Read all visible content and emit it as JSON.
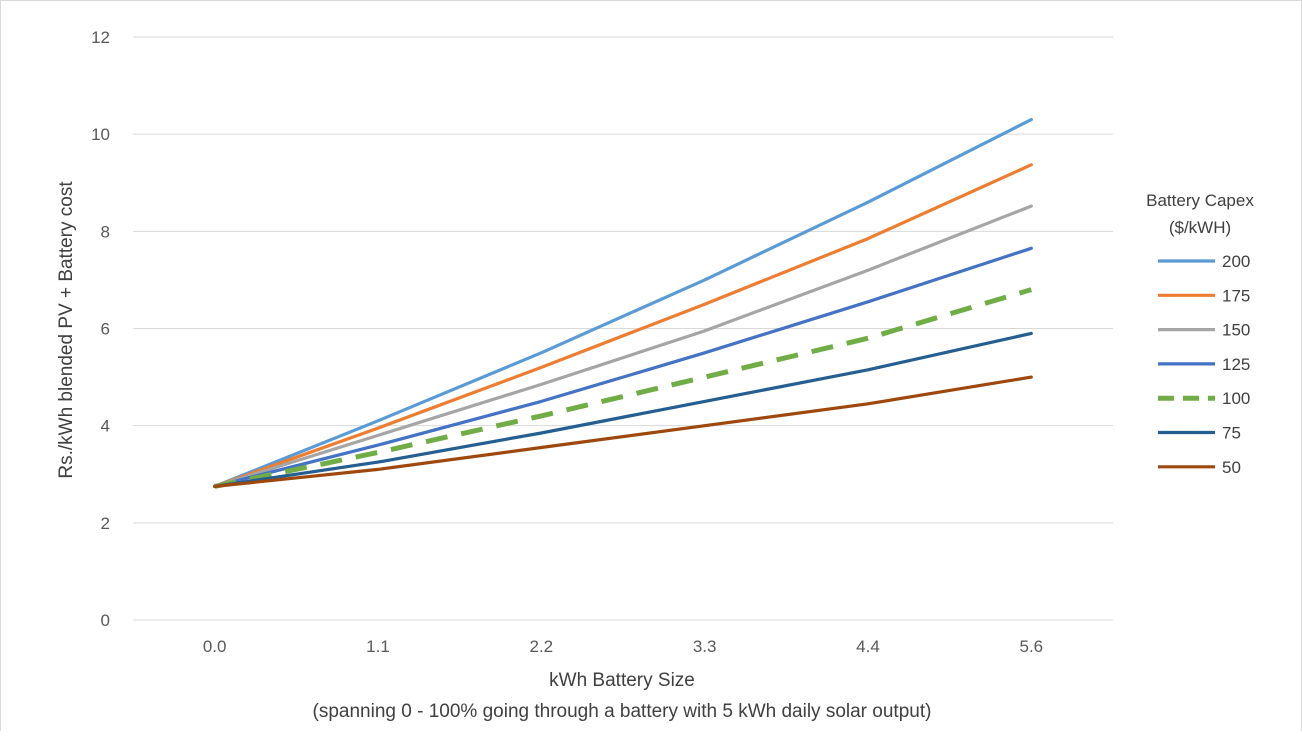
{
  "chart_data": {
    "type": "line",
    "x": [
      "0.0",
      "1.1",
      "2.2",
      "3.3",
      "4.4",
      "5.6"
    ],
    "xlabel": "kWh Battery Size",
    "xlabel_line2": "(spanning 0 - 100% going through a battery with 5 kWh daily solar output)",
    "ylabel": "Rs./kWh blended PV + Battery cost",
    "ylim": [
      0,
      12
    ],
    "yticks": [
      "0",
      "2",
      "4",
      "6",
      "8",
      "10",
      "12"
    ],
    "grid": "horizontal",
    "legend_title_line1": "Battery Capex",
    "legend_title_line2": "($/kWH)",
    "legend_position": "right",
    "series": [
      {
        "name": "200",
        "color": "#5B9BD5",
        "dashed": false,
        "values": [
          2.75,
          4.1,
          5.5,
          7.0,
          8.6,
          10.3
        ]
      },
      {
        "name": "175",
        "color": "#ED7D31",
        "dashed": false,
        "values": [
          2.75,
          3.95,
          5.2,
          6.5,
          7.85,
          9.37
        ]
      },
      {
        "name": "150",
        "color": "#A5A5A5",
        "dashed": false,
        "values": [
          2.75,
          3.8,
          4.85,
          5.95,
          7.2,
          8.52
        ]
      },
      {
        "name": "125",
        "color": "#4472C4",
        "dashed": false,
        "values": [
          2.75,
          3.6,
          4.5,
          5.5,
          6.55,
          7.65
        ]
      },
      {
        "name": "100",
        "color": "#70AD47",
        "dashed": true,
        "values": [
          2.75,
          3.45,
          4.2,
          5.0,
          5.8,
          6.8
        ]
      },
      {
        "name": "75",
        "color": "#255E91",
        "dashed": false,
        "values": [
          2.75,
          3.25,
          3.85,
          4.5,
          5.15,
          5.9
        ]
      },
      {
        "name": "50",
        "color": "#9E480E",
        "dashed": false,
        "values": [
          2.75,
          3.1,
          3.55,
          4.0,
          4.45,
          5.0
        ]
      }
    ]
  }
}
